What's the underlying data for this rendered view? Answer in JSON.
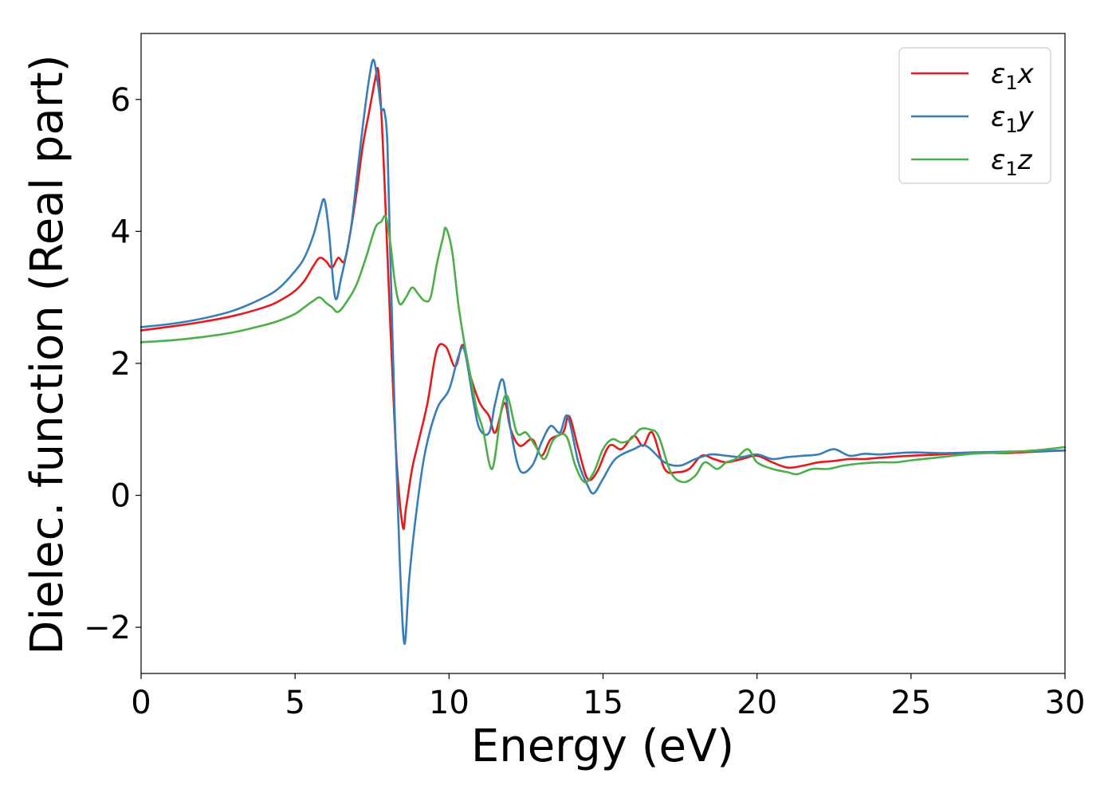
{
  "chart_data": {
    "type": "line",
    "title": "",
    "xlabel": "Energy (eV)",
    "ylabel": "Dielec. function (Real part)",
    "xlim": [
      0,
      30
    ],
    "ylim": [
      -2.7,
      7.0
    ],
    "xticks": [
      0,
      5,
      10,
      15,
      20,
      25,
      30
    ],
    "xtick_labels": [
      "0",
      "5",
      "10",
      "15",
      "20",
      "25",
      "30"
    ],
    "yticks": [
      -2,
      0,
      2,
      4,
      6
    ],
    "ytick_labels": [
      "−2",
      "0",
      "2",
      "4",
      "6"
    ],
    "grid": false,
    "legend_position": "top-right",
    "series": [
      {
        "name": "ε1x",
        "legend_base": "ε",
        "legend_sub": "1",
        "legend_suffix": "x",
        "color": "#e41a1c",
        "x": [
          0,
          1,
          2,
          3,
          4,
          4.5,
          5,
          5.3,
          5.6,
          5.8,
          6.0,
          6.2,
          6.4,
          6.6,
          6.8,
          7.0,
          7.2,
          7.4,
          7.6,
          7.7,
          7.8,
          7.9,
          8.1,
          8.3,
          8.5,
          8.6,
          8.8,
          9.0,
          9.3,
          9.6,
          9.9,
          10.2,
          10.45,
          10.7,
          11.0,
          11.3,
          11.5,
          11.8,
          12.0,
          12.3,
          12.7,
          13.0,
          13.3,
          13.7,
          13.9,
          14.2,
          14.5,
          14.8,
          15.2,
          15.6,
          16.0,
          16.3,
          16.6,
          17.0,
          17.4,
          17.8,
          18.2,
          18.6,
          19.0,
          19.5,
          20.0,
          20.5,
          21.0,
          21.5,
          22.0,
          22.5,
          23.0,
          23.5,
          24.0,
          25.0,
          26.0,
          27.0,
          28.0,
          29.0,
          30.0
        ],
        "y": [
          2.5,
          2.56,
          2.63,
          2.72,
          2.85,
          2.95,
          3.1,
          3.25,
          3.48,
          3.6,
          3.55,
          3.45,
          3.6,
          3.55,
          4.0,
          4.6,
          5.3,
          5.8,
          6.3,
          6.45,
          5.8,
          4.8,
          2.5,
          0.5,
          -0.48,
          -0.2,
          0.4,
          0.8,
          1.4,
          2.2,
          2.25,
          1.95,
          2.28,
          1.8,
          1.4,
          1.2,
          0.95,
          1.4,
          1.0,
          0.75,
          0.85,
          0.6,
          0.85,
          0.95,
          1.2,
          0.7,
          0.25,
          0.35,
          0.75,
          0.7,
          0.9,
          0.75,
          0.95,
          0.4,
          0.35,
          0.4,
          0.6,
          0.55,
          0.5,
          0.55,
          0.6,
          0.5,
          0.42,
          0.45,
          0.5,
          0.52,
          0.55,
          0.55,
          0.57,
          0.6,
          0.62,
          0.65,
          0.64,
          0.66,
          0.68
        ]
      },
      {
        "name": "ε1y",
        "legend_base": "ε",
        "legend_sub": "1",
        "legend_suffix": "y",
        "color": "#377eb8",
        "x": [
          0,
          1,
          2,
          3,
          4,
          4.5,
          5,
          5.3,
          5.6,
          5.8,
          5.95,
          6.1,
          6.3,
          6.5,
          6.8,
          7.0,
          7.2,
          7.4,
          7.55,
          7.7,
          7.8,
          7.9,
          8.0,
          8.1,
          8.25,
          8.4,
          8.55,
          8.7,
          8.9,
          9.2,
          9.6,
          10.0,
          10.3,
          10.5,
          10.8,
          11.0,
          11.3,
          11.5,
          11.75,
          12.0,
          12.3,
          12.7,
          13.0,
          13.3,
          13.6,
          13.85,
          14.2,
          14.5,
          14.7,
          15.0,
          15.4,
          16.0,
          16.4,
          17.0,
          17.5,
          18.0,
          18.5,
          19.0,
          19.5,
          20.0,
          20.5,
          21.0,
          21.5,
          22.0,
          22.5,
          23.0,
          23.5,
          24.0,
          25.0,
          26.0,
          27.0,
          28.0,
          29.0,
          30.0
        ],
        "y": [
          2.55,
          2.6,
          2.68,
          2.8,
          3.0,
          3.15,
          3.4,
          3.6,
          3.95,
          4.3,
          4.48,
          4.0,
          3.0,
          3.3,
          4.0,
          4.8,
          5.6,
          6.3,
          6.6,
          6.2,
          5.85,
          5.82,
          5.3,
          3.5,
          1.0,
          -1.0,
          -2.25,
          -1.3,
          -0.4,
          0.6,
          1.3,
          1.6,
          2.1,
          2.2,
          1.4,
          1.0,
          0.95,
          1.4,
          1.75,
          1.0,
          0.38,
          0.45,
          0.8,
          1.05,
          0.95,
          1.2,
          0.5,
          0.15,
          0.03,
          0.25,
          0.55,
          0.7,
          0.75,
          0.5,
          0.45,
          0.55,
          0.62,
          0.6,
          0.58,
          0.62,
          0.55,
          0.58,
          0.6,
          0.62,
          0.7,
          0.6,
          0.63,
          0.62,
          0.65,
          0.64,
          0.65,
          0.66,
          0.67,
          0.68
        ]
      },
      {
        "name": "ε1z",
        "legend_base": "ε",
        "legend_sub": "1",
        "legend_suffix": "z",
        "color": "#4daf4a",
        "x": [
          0,
          1,
          2,
          3,
          4,
          4.5,
          5,
          5.3,
          5.6,
          5.8,
          6.0,
          6.2,
          6.4,
          6.7,
          7.0,
          7.3,
          7.6,
          7.8,
          7.95,
          8.1,
          8.25,
          8.4,
          8.6,
          8.8,
          9.0,
          9.2,
          9.4,
          9.6,
          9.8,
          9.9,
          10.1,
          10.3,
          10.5,
          10.7,
          10.9,
          11.1,
          11.4,
          11.7,
          11.9,
          12.2,
          12.5,
          12.8,
          13.1,
          13.4,
          13.8,
          14.1,
          14.4,
          14.7,
          15.0,
          15.3,
          15.6,
          15.9,
          16.2,
          16.5,
          16.8,
          17.2,
          17.6,
          18.0,
          18.3,
          18.7,
          19.0,
          19.3,
          19.7,
          20.0,
          20.5,
          21.0,
          21.3,
          21.8,
          22.3,
          22.8,
          23.3,
          24.0,
          24.5,
          25.0,
          26.0,
          27.0,
          28.0,
          29.0,
          30.0
        ],
        "y": [
          2.32,
          2.35,
          2.4,
          2.47,
          2.58,
          2.65,
          2.75,
          2.85,
          2.95,
          3.0,
          2.92,
          2.85,
          2.78,
          2.95,
          3.2,
          3.6,
          4.05,
          4.15,
          4.22,
          3.8,
          3.2,
          2.9,
          3.0,
          3.15,
          3.05,
          2.95,
          3.0,
          3.5,
          3.9,
          4.05,
          3.7,
          2.9,
          2.3,
          1.8,
          1.3,
          1.0,
          0.4,
          1.3,
          1.5,
          0.95,
          0.95,
          0.75,
          0.55,
          0.85,
          0.9,
          0.45,
          0.2,
          0.35,
          0.7,
          0.85,
          0.8,
          0.85,
          1.0,
          1.0,
          0.9,
          0.35,
          0.2,
          0.3,
          0.5,
          0.4,
          0.5,
          0.55,
          0.7,
          0.5,
          0.4,
          0.35,
          0.32,
          0.4,
          0.4,
          0.45,
          0.48,
          0.5,
          0.5,
          0.53,
          0.58,
          0.63,
          0.65,
          0.68,
          0.73
        ]
      }
    ]
  }
}
